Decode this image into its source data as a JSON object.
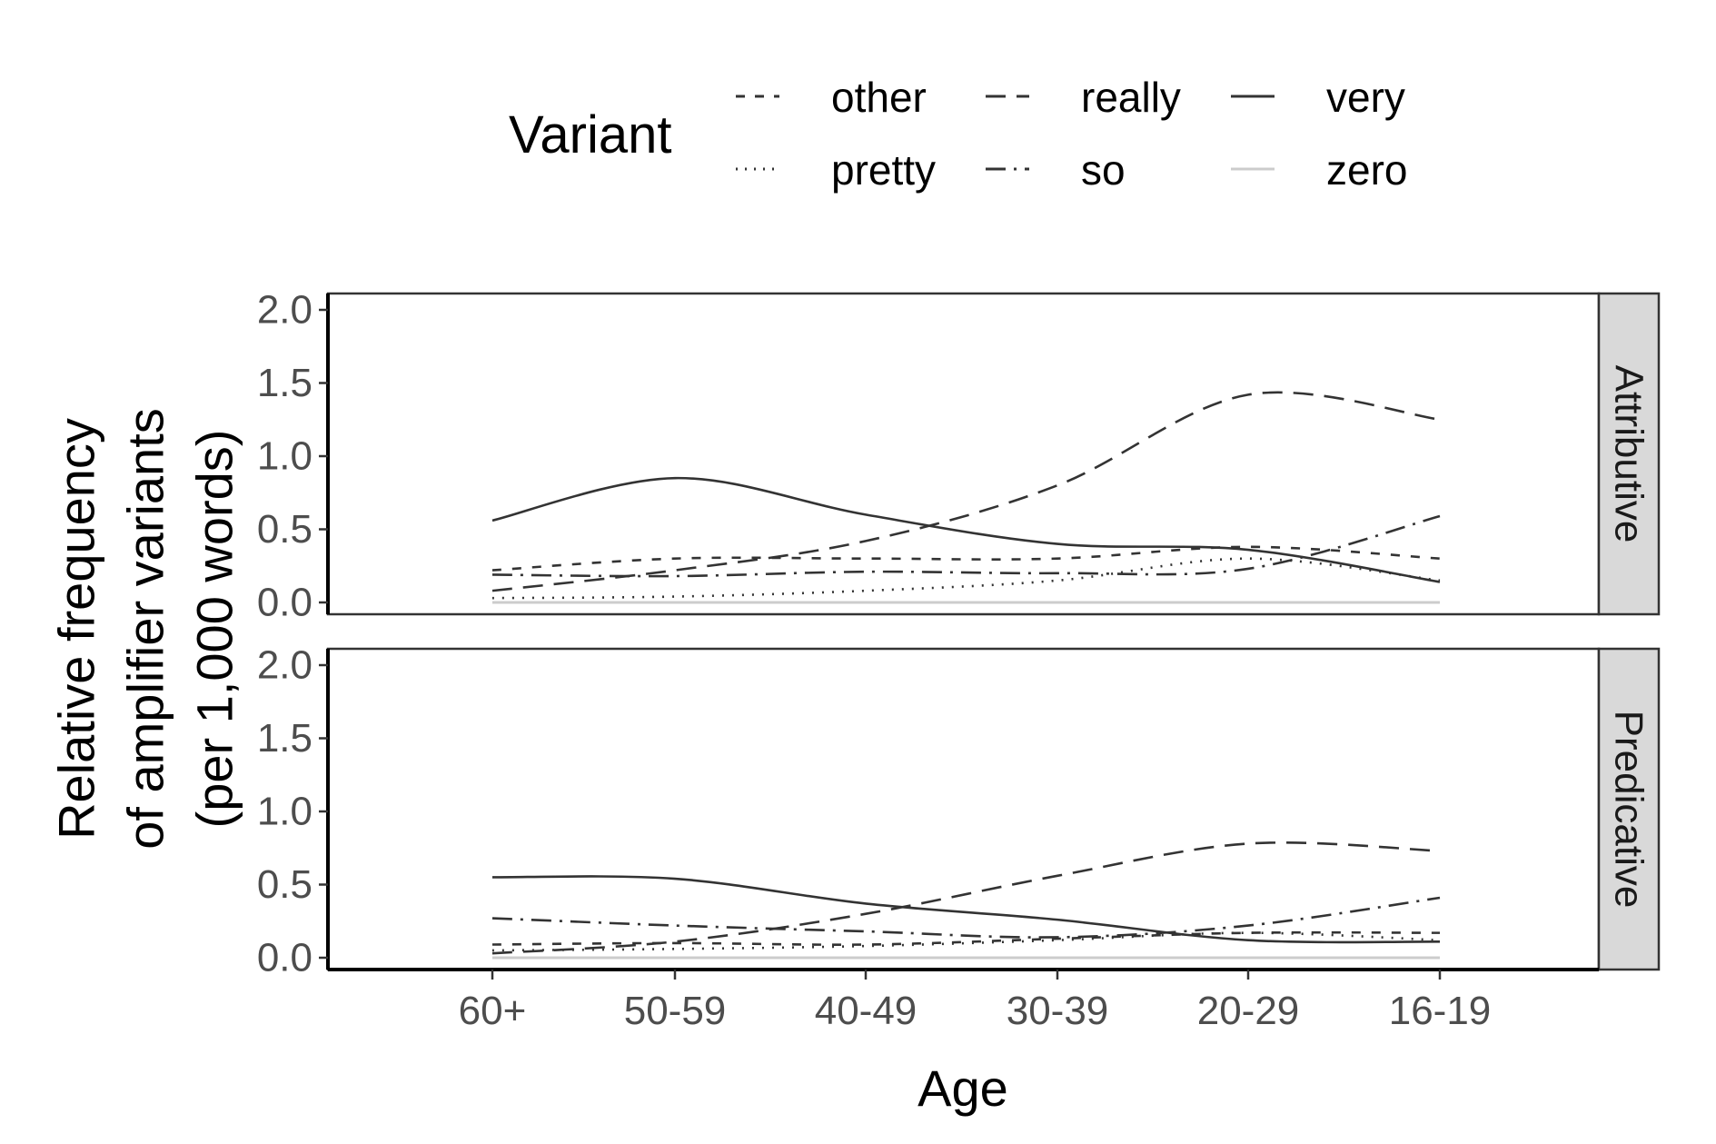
{
  "chart_data": {
    "type": "line",
    "legend": {
      "title": "Variant",
      "position": "top"
    },
    "xlabel": "Age",
    "ylabel_lines": [
      "Relative frequency",
      "of amplifier variants",
      "(per 1,000 words)"
    ],
    "categories": [
      "60+",
      "50-59",
      "40-49",
      "30-39",
      "20-29",
      "16-19"
    ],
    "ylim": [
      0,
      2
    ],
    "yticks": [
      "0.0",
      "0.5",
      "1.0",
      "1.5",
      "2.0"
    ],
    "grid": false,
    "panels": [
      {
        "label": "Attributive",
        "series": [
          {
            "name": "other",
            "values": [
              0.22,
              0.3,
              0.3,
              0.3,
              0.38,
              0.3
            ]
          },
          {
            "name": "pretty",
            "values": [
              0.03,
              0.04,
              0.08,
              0.15,
              0.3,
              0.15
            ]
          },
          {
            "name": "really",
            "values": [
              0.08,
              0.22,
              0.42,
              0.8,
              1.42,
              1.25
            ]
          },
          {
            "name": "so",
            "values": [
              0.19,
              0.18,
              0.21,
              0.2,
              0.23,
              0.59
            ]
          },
          {
            "name": "very",
            "values": [
              0.56,
              0.85,
              0.6,
              0.4,
              0.36,
              0.14
            ]
          },
          {
            "name": "zero",
            "values": [
              0.0,
              0.0,
              0.0,
              0.0,
              0.0,
              0.0
            ]
          }
        ]
      },
      {
        "label": "Predicative",
        "series": [
          {
            "name": "other",
            "values": [
              0.09,
              0.1,
              0.09,
              0.13,
              0.17,
              0.17
            ]
          },
          {
            "name": "pretty",
            "values": [
              0.05,
              0.06,
              0.08,
              0.12,
              0.17,
              0.12
            ]
          },
          {
            "name": "really",
            "values": [
              0.03,
              0.11,
              0.3,
              0.56,
              0.78,
              0.73
            ]
          },
          {
            "name": "so",
            "values": [
              0.27,
              0.22,
              0.18,
              0.14,
              0.22,
              0.41
            ]
          },
          {
            "name": "very",
            "values": [
              0.55,
              0.54,
              0.37,
              0.26,
              0.12,
              0.11
            ]
          },
          {
            "name": "zero",
            "values": [
              0.0,
              0.0,
              0.0,
              0.0,
              0.0,
              0.0
            ]
          }
        ]
      }
    ],
    "line_styles": {
      "other": {
        "dash": "10 12",
        "color": "#333333"
      },
      "pretty": {
        "dash": "2 9",
        "color": "#333333"
      },
      "really": {
        "dash": "22 12",
        "color": "#333333"
      },
      "so": {
        "dash": "22 9 3 9",
        "color": "#333333"
      },
      "very": {
        "dash": "",
        "color": "#333333"
      },
      "zero": {
        "dash": "",
        "color": "#cccccc"
      }
    }
  }
}
